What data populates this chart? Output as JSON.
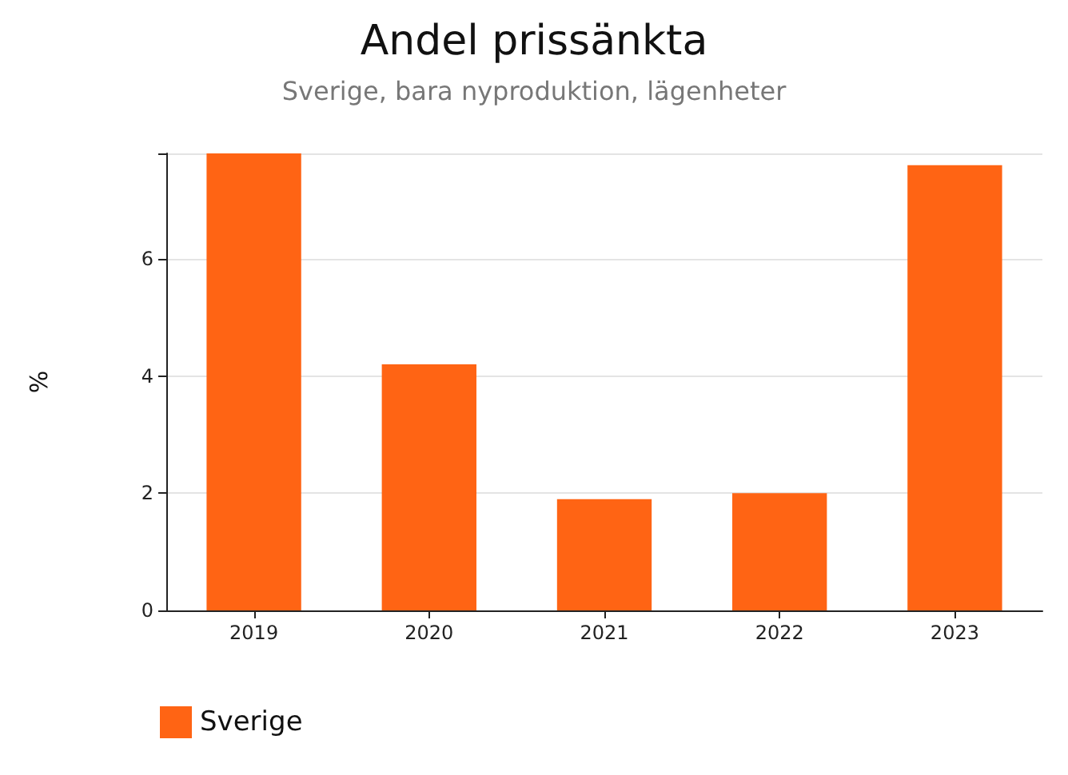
{
  "chart_data": {
    "type": "bar",
    "title": "Andel prissänkta",
    "subtitle": "Sverige, bara nyproduktion, lägenheter",
    "ylabel": "%",
    "categories": [
      "2019",
      "2020",
      "2021",
      "2022",
      "2023"
    ],
    "series": [
      {
        "name": "Sverige",
        "color": "#ff6414",
        "values": [
          7.8,
          4.2,
          1.9,
          2.0,
          7.6
        ]
      }
    ],
    "ylim": [
      0,
      7.8
    ],
    "yticks": [
      0,
      2,
      4,
      6,
      {
        "value": 7.8,
        "label": null
      }
    ],
    "grid": "y",
    "legend": "bottom left"
  }
}
